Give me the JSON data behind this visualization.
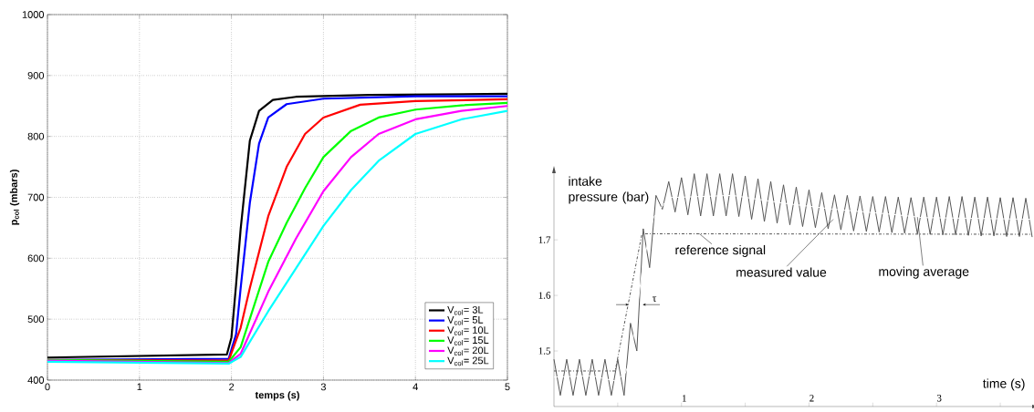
{
  "chart_data": [
    {
      "type": "line",
      "xlabel": "temps (s)",
      "ylabel": "p$_{col}$ (mbars)",
      "xlim": [
        0,
        5
      ],
      "ylim": [
        400,
        1000
      ],
      "xticks": [
        0,
        1,
        2,
        3,
        4,
        5
      ],
      "yticks": [
        400,
        500,
        600,
        700,
        800,
        900,
        1000
      ],
      "grid": true,
      "legend": "bottom right",
      "line_style": "solid",
      "marker": "none",
      "series": [
        {
          "name": "V$_{col}$= 3L",
          "color": "#000000",
          "x": [
            0,
            1.95,
            2.0,
            2.05,
            2.1,
            2.2,
            2.3,
            2.45,
            2.7,
            3.5,
            5
          ],
          "values": [
            437,
            442,
            470,
            556,
            648,
            793,
            842,
            860,
            865,
            868,
            870
          ]
        },
        {
          "name": "V$_{col}$= 5L",
          "color": "#0000ff",
          "x": [
            0,
            1.97,
            2.05,
            2.1,
            2.2,
            2.3,
            2.4,
            2.6,
            3.0,
            4.0,
            5
          ],
          "values": [
            433,
            435,
            475,
            551,
            691,
            788,
            831,
            853,
            862,
            866,
            866
          ]
        },
        {
          "name": "V$_{col}$= 10L",
          "color": "#ff0000",
          "x": [
            0,
            1.97,
            2.1,
            2.2,
            2.4,
            2.6,
            2.8,
            3.0,
            3.4,
            4.0,
            5
          ],
          "values": [
            433,
            432,
            486,
            551,
            669,
            750,
            804,
            831,
            852,
            858,
            861
          ]
        },
        {
          "name": "V$_{col}$= 15L",
          "color": "#00ff00",
          "x": [
            0,
            1.97,
            2.1,
            2.4,
            2.6,
            2.8,
            3.0,
            3.3,
            3.6,
            4.0,
            4.5,
            5
          ],
          "values": [
            433,
            430,
            454,
            594,
            658,
            715,
            766,
            809,
            831,
            844,
            851,
            855
          ]
        },
        {
          "name": "V$_{col}$= 20L",
          "color": "#ff00ff",
          "x": [
            0,
            1.97,
            2.1,
            2.4,
            2.7,
            3.0,
            3.3,
            3.6,
            4.0,
            4.5,
            5
          ],
          "values": [
            432,
            428,
            443,
            545,
            632,
            710,
            766,
            804,
            828,
            842,
            850
          ]
        },
        {
          "name": "V$_{col}$= 25L",
          "color": "#00ffff",
          "x": [
            0,
            1.97,
            2.1,
            2.4,
            2.7,
            3.0,
            3.3,
            3.6,
            4.0,
            4.5,
            5
          ],
          "values": [
            430,
            427,
            438,
            513,
            583,
            653,
            712,
            760,
            804,
            828,
            842
          ]
        }
      ]
    },
    {
      "type": "line",
      "xlabel": "time (s)",
      "ylabel": "intake pressure (bar)",
      "xlim": [
        0,
        3.75
      ],
      "ylim": [
        1.4,
        1.82
      ],
      "xticks": [
        {
          "value": 0.5,
          "label": null
        },
        1,
        {
          "value": 1.5,
          "label": null
        },
        2,
        {
          "value": 2.5,
          "label": null
        },
        3,
        {
          "value": 3.5,
          "label": null
        }
      ],
      "yticks": [
        1.5,
        1.6,
        1.7
      ],
      "grid": false,
      "legend": false,
      "marker": "none",
      "series": [
        {
          "color": "#555555",
          "x": [
            0,
            0.05,
            0.1,
            0.15,
            0.2,
            0.25,
            0.3,
            0.35,
            0.4,
            0.45,
            0.5,
            0.55,
            0.6,
            0.65,
            0.7,
            0.75,
            0.8,
            0.85,
            0.9,
            0.95,
            1.0,
            1.05,
            1.1,
            1.15,
            1.2,
            1.25,
            1.3,
            1.35,
            1.4,
            1.45,
            1.5,
            1.55,
            1.6,
            1.65,
            1.7,
            1.75,
            1.8,
            1.85,
            1.9,
            1.95,
            2.0,
            2.05,
            2.1,
            2.15,
            2.2,
            2.25,
            2.3,
            2.35,
            2.4,
            2.45,
            2.5,
            2.55,
            2.6,
            2.65,
            2.7,
            2.75,
            2.8,
            2.85,
            2.9,
            2.95,
            3.0,
            3.05,
            3.1,
            3.15,
            3.2,
            3.25,
            3.3,
            3.35,
            3.4,
            3.45,
            3.5,
            3.55,
            3.6,
            3.65,
            3.7,
            3.75
          ],
          "values": [
            1.485,
            1.42,
            1.485,
            1.42,
            1.485,
            1.42,
            1.485,
            1.42,
            1.485,
            1.42,
            1.485,
            1.42,
            1.55,
            1.5,
            1.72,
            1.65,
            1.78,
            1.755,
            1.805,
            1.75,
            1.812,
            1.745,
            1.819,
            1.743,
            1.819,
            1.743,
            1.819,
            1.743,
            1.819,
            1.742,
            1.815,
            1.737,
            1.81,
            1.733,
            1.805,
            1.73,
            1.799,
            1.727,
            1.795,
            1.724,
            1.79,
            1.722,
            1.785,
            1.72,
            1.781,
            1.718,
            1.78,
            1.716,
            1.779,
            1.715,
            1.778,
            1.714,
            1.778,
            1.713,
            1.777,
            1.712,
            1.776,
            1.711,
            1.777,
            1.71,
            1.777,
            1.709,
            1.778,
            1.709,
            1.778,
            1.708,
            1.777,
            1.707,
            1.777,
            1.707,
            1.776,
            1.706,
            1.776,
            1.706,
            1.775,
            1.705
          ]
        },
        {
          "color": "#ffffff",
          "x": [
            0,
            0.3,
            0.48,
            0.56,
            0.6,
            0.7,
            0.78,
            0.9,
            1.4,
            1.8,
            2.2,
            2.6,
            2.9,
            3.2,
            3.75
          ],
          "values": [
            1.453,
            1.455,
            1.446,
            1.46,
            1.487,
            1.658,
            1.74,
            1.776,
            1.78,
            1.766,
            1.755,
            1.747,
            1.74,
            1.739,
            1.737
          ]
        },
        {
          "color": "#555555",
          "line_style": "dashdot",
          "x": [
            0,
            0.48,
            0.69,
            3.75
          ],
          "values": [
            1.464,
            1.464,
            1.711,
            1.71
          ]
        }
      ],
      "annotations": [
        {
          "text": "reference signal",
          "x": 1.14,
          "y": 1.711
        },
        {
          "text": "measured value",
          "x": 2.19,
          "y": 1.737
        },
        {
          "text": "moving average",
          "x": 2.85,
          "y": 1.741
        },
        "τ"
      ]
    }
  ]
}
